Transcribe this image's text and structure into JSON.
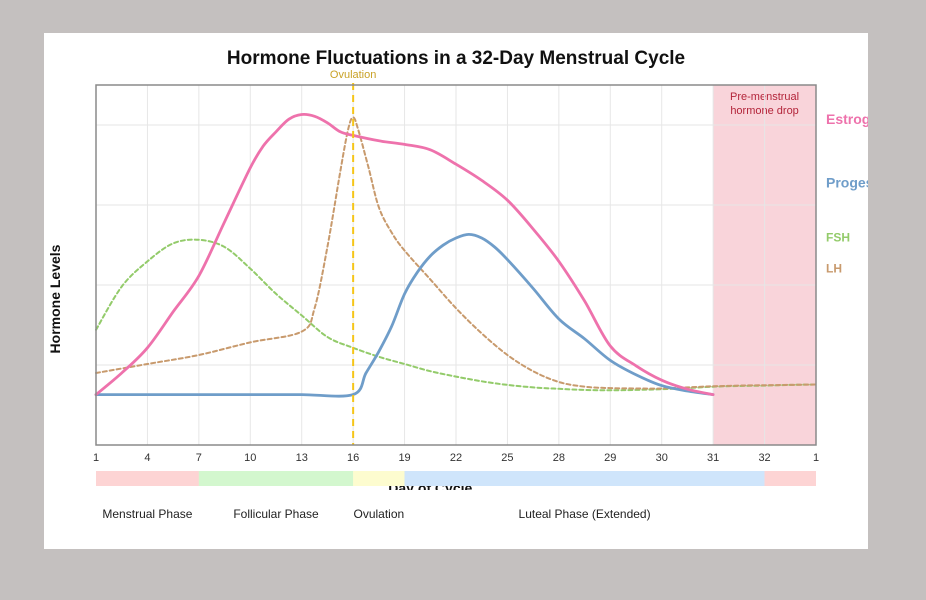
{
  "chart_data": {
    "type": "line",
    "title": "Hormone Fluctuations in a 32-Day Menstrual Cycle",
    "xlabel": "Day of Cycle",
    "ylabel": "Hormone Levels",
    "x_tick_labels": [
      "1",
      "4",
      "7",
      "10",
      "13",
      "16",
      "19",
      "22",
      "25",
      "28",
      "29",
      "30",
      "31",
      "32",
      "1"
    ],
    "ylim": [
      0,
      1
    ],
    "grid": true,
    "ovulation_marker": {
      "label": "Ovulation",
      "position": 5,
      "color": "#f5c518"
    },
    "shaded_region": {
      "label_lines": [
        "Pre-menstrual",
        "hormone drop"
      ],
      "from": 12,
      "to": 14,
      "color": "#f9d4da",
      "text_color": "#b3253a"
    },
    "series": [
      {
        "name": "Estrogen",
        "legend_text": "Estrog",
        "color": "#ee72ac",
        "dash": "solid",
        "legend_y": 0.904,
        "points": [
          [
            0,
            0.14
          ],
          [
            0.5,
            0.2
          ],
          [
            1,
            0.27
          ],
          [
            1.5,
            0.37
          ],
          [
            2,
            0.47
          ],
          [
            2.5,
            0.62
          ],
          [
            3,
            0.77
          ],
          [
            3.25,
            0.83
          ],
          [
            3.5,
            0.87
          ],
          [
            3.75,
            0.905
          ],
          [
            4,
            0.918
          ],
          [
            4.25,
            0.913
          ],
          [
            4.5,
            0.895
          ],
          [
            4.75,
            0.87
          ],
          [
            5,
            0.86
          ],
          [
            5.5,
            0.845
          ],
          [
            6,
            0.835
          ],
          [
            6.5,
            0.82
          ],
          [
            7,
            0.78
          ],
          [
            7.5,
            0.735
          ],
          [
            8,
            0.68
          ],
          [
            8.5,
            0.6
          ],
          [
            9,
            0.51
          ],
          [
            9.5,
            0.4
          ],
          [
            10,
            0.275
          ],
          [
            10.5,
            0.22
          ],
          [
            11,
            0.18
          ],
          [
            11.5,
            0.155
          ],
          [
            12,
            0.14
          ]
        ]
      },
      {
        "name": "Progesterone",
        "legend_text": "Proges",
        "color": "#6f9dc9",
        "dash": "solid",
        "legend_y": 0.728,
        "points": [
          [
            0,
            0.14
          ],
          [
            1,
            0.14
          ],
          [
            2,
            0.14
          ],
          [
            3,
            0.14
          ],
          [
            4,
            0.14
          ],
          [
            5,
            0.14
          ],
          [
            5.25,
            0.2
          ],
          [
            5.5,
            0.26
          ],
          [
            5.75,
            0.33
          ],
          [
            6,
            0.42
          ],
          [
            6.25,
            0.48
          ],
          [
            6.5,
            0.525
          ],
          [
            6.75,
            0.555
          ],
          [
            7,
            0.575
          ],
          [
            7.25,
            0.585
          ],
          [
            7.5,
            0.575
          ],
          [
            7.75,
            0.55
          ],
          [
            8,
            0.515
          ],
          [
            8.5,
            0.435
          ],
          [
            9,
            0.35
          ],
          [
            9.5,
            0.295
          ],
          [
            10,
            0.235
          ],
          [
            10.5,
            0.195
          ],
          [
            11,
            0.165
          ],
          [
            11.5,
            0.15
          ],
          [
            12,
            0.14
          ]
        ]
      },
      {
        "name": "FSH",
        "legend_text": "FSH",
        "color": "#93cb6a",
        "dash": "dashed",
        "legend_y": 0.576,
        "points": [
          [
            0,
            0.32
          ],
          [
            0.5,
            0.44
          ],
          [
            1,
            0.51
          ],
          [
            1.5,
            0.56
          ],
          [
            2,
            0.57
          ],
          [
            2.5,
            0.55
          ],
          [
            3,
            0.49
          ],
          [
            3.5,
            0.42
          ],
          [
            4,
            0.36
          ],
          [
            4.5,
            0.3
          ],
          [
            5,
            0.27
          ],
          [
            5.5,
            0.245
          ],
          [
            6,
            0.225
          ],
          [
            6.5,
            0.205
          ],
          [
            7,
            0.19
          ],
          [
            7.5,
            0.177
          ],
          [
            8,
            0.167
          ],
          [
            8.5,
            0.16
          ],
          [
            9,
            0.156
          ],
          [
            9.5,
            0.153
          ],
          [
            10,
            0.152
          ],
          [
            10.5,
            0.153
          ],
          [
            11,
            0.155
          ],
          [
            11.5,
            0.158
          ],
          [
            12,
            0.162
          ],
          [
            12.5,
            0.164
          ],
          [
            13,
            0.165
          ],
          [
            13.5,
            0.167
          ],
          [
            14,
            0.168
          ]
        ]
      },
      {
        "name": "LH",
        "legend_text": "LH",
        "color": "#c89a6d",
        "dash": "dashed",
        "legend_y": 0.49,
        "points": [
          [
            0,
            0.2
          ],
          [
            1,
            0.225
          ],
          [
            2,
            0.25
          ],
          [
            3,
            0.285
          ],
          [
            4,
            0.315
          ],
          [
            4.25,
            0.38
          ],
          [
            4.5,
            0.55
          ],
          [
            4.75,
            0.76
          ],
          [
            4.9,
            0.875
          ],
          [
            5,
            0.91
          ],
          [
            5.1,
            0.875
          ],
          [
            5.3,
            0.77
          ],
          [
            5.5,
            0.66
          ],
          [
            5.75,
            0.59
          ],
          [
            6,
            0.54
          ],
          [
            6.5,
            0.46
          ],
          [
            7,
            0.38
          ],
          [
            7.5,
            0.31
          ],
          [
            8,
            0.25
          ],
          [
            8.5,
            0.205
          ],
          [
            9,
            0.175
          ],
          [
            9.5,
            0.162
          ],
          [
            10,
            0.158
          ],
          [
            10.5,
            0.157
          ],
          [
            11,
            0.157
          ],
          [
            11.5,
            0.16
          ],
          [
            12,
            0.163
          ],
          [
            12.5,
            0.165
          ],
          [
            13,
            0.166
          ],
          [
            14,
            0.168
          ]
        ]
      }
    ],
    "phase_bars": [
      {
        "from": 0,
        "to": 2,
        "color": "#fdd4d4"
      },
      {
        "from": 2,
        "to": 5,
        "color": "#d3f7ce"
      },
      {
        "from": 5,
        "to": 6,
        "color": "#fdfccf"
      },
      {
        "from": 6,
        "to": 13,
        "color": "#cfe5fb"
      },
      {
        "from": 13,
        "to": 14,
        "color": "#fdd4d4"
      }
    ],
    "phase_labels": [
      {
        "text": "Menstrual Phase",
        "at": 1
      },
      {
        "text": "Follicular Phase",
        "at": 3.5
      },
      {
        "text": "Ovulation",
        "at": 5.5
      },
      {
        "text": "Luteal Phase (Extended)",
        "at": 9.5
      }
    ]
  }
}
